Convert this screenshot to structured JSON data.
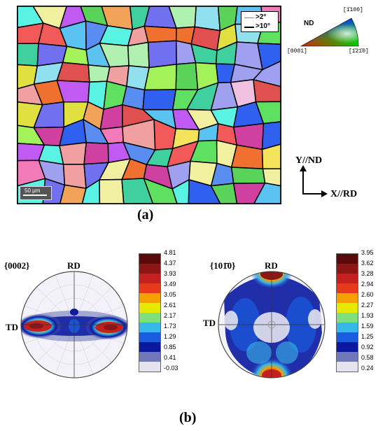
{
  "panel_a": {
    "label": "(a)",
    "legend": {
      "low_angle": ">2°",
      "high_angle": ">10°"
    },
    "scale_bar": "50 μm",
    "ipf": {
      "title": "ND",
      "corner_0001": "[0001]",
      "corner_1100": "[1̄100]",
      "corner_1210": "[1̄21̄0]"
    },
    "axes": {
      "y": "Y//ND",
      "x": "X//RD"
    }
  },
  "panel_b": {
    "label": "(b)",
    "pole_figures": [
      {
        "title": "{0002}",
        "top_label": "RD",
        "left_label": "TD",
        "colorbar": [
          "4.81",
          "4.37",
          "3.93",
          "3.49",
          "3.05",
          "2.61",
          "2.17",
          "1.73",
          "1.29",
          "0.85",
          "0.41",
          "-0.03"
        ]
      },
      {
        "title": "{101̄0}",
        "top_label": "RD",
        "left_label": "TD",
        "colorbar": [
          "3.95",
          "3.62",
          "3.28",
          "2.94",
          "2.60",
          "2.27",
          "1.93",
          "1.59",
          "1.25",
          "0.92",
          "0.58",
          "0.24"
        ]
      }
    ],
    "colorbar_colors": [
      "#5a0a0a",
      "#8a1616",
      "#c42020",
      "#e63a1a",
      "#f4a000",
      "#e8e800",
      "#7de07d",
      "#38b8e8",
      "#1a5ce0",
      "#0a18a0",
      "#7078b8",
      "#e4e4f0"
    ]
  }
}
